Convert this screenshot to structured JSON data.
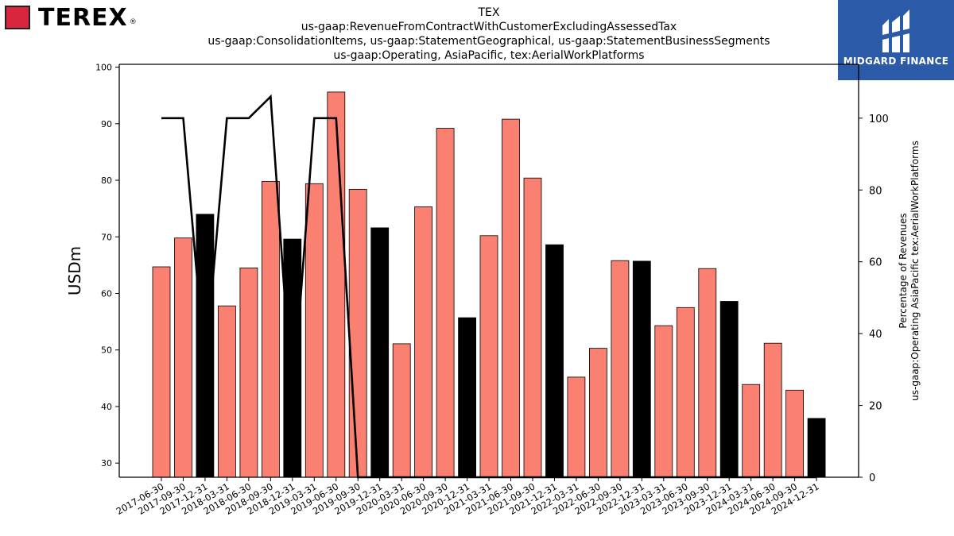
{
  "header": {
    "left_logo_text": "TEREX",
    "left_logo_reg": "®",
    "right_logo_text": "MIDGARD FINANCE",
    "title_lines": [
      "TEX",
      "us-gaap:RevenueFromContractWithCustomerExcludingAssessedTax",
      "us-gaap:ConsolidationItems, us-gaap:StatementGeographical, us-gaap:StatementBusinessSegments",
      "us-gaap:Operating, AsiaPacific, tex:AerialWorkPlatforms"
    ]
  },
  "colors": {
    "bar_default": "#fa8072",
    "bar_q4": "#000000",
    "line": "#000000",
    "brand_blue": "#2b5aa8",
    "logo_red": "#d7263d"
  },
  "chart_data": {
    "type": "bar",
    "ylabel": "USDm",
    "y2label_lines": [
      "Percentage of Revenues",
      "us-gaap:Operating AsiaPacific tex:AerialWorkPlatforms"
    ],
    "ylim": [
      27.5,
      100.5
    ],
    "y2lim": [
      0,
      115
    ],
    "yticks": [
      30,
      40,
      50,
      60,
      70,
      80,
      90,
      100
    ],
    "y2ticks": [
      0,
      20,
      40,
      60,
      80,
      100
    ],
    "grid": false,
    "categories": [
      "2017-06-30",
      "2017-09-30",
      "2017-12-31",
      "2018-03-31",
      "2018-06-30",
      "2018-09-30",
      "2018-12-31",
      "2019-03-31",
      "2019-06-30",
      "2019-09-30",
      "2019-12-31",
      "2020-03-31",
      "2020-06-30",
      "2020-09-30",
      "2020-12-31",
      "2021-03-31",
      "2021-06-30",
      "2021-09-30",
      "2021-12-31",
      "2022-03-31",
      "2022-06-30",
      "2022-09-30",
      "2022-12-31",
      "2023-03-31",
      "2023-06-30",
      "2023-09-30",
      "2023-12-31",
      "2024-03-31",
      "2024-06-30",
      "2024-09-30",
      "2024-12-31"
    ],
    "series": [
      {
        "values": [
          64.7,
          69.8,
          74.0,
          57.8,
          64.5,
          79.8,
          69.6,
          79.4,
          95.6,
          78.4,
          71.6,
          51.1,
          75.3,
          89.2,
          55.7,
          70.2,
          90.8,
          80.4,
          68.6,
          45.2,
          50.3,
          65.8,
          65.7,
          54.3,
          57.5,
          64.4,
          58.6,
          43.9,
          51.2,
          42.9,
          37.9
        ]
      },
      {
        "type": "line",
        "axis": "right",
        "values": [
          100,
          100,
          null,
          100,
          100,
          106,
          null,
          100,
          100,
          0,
          0,
          0,
          0,
          0,
          0,
          0,
          0,
          0,
          0,
          0,
          0,
          0,
          0,
          0,
          0,
          0,
          0,
          0,
          0,
          0,
          0
        ]
      }
    ]
  }
}
